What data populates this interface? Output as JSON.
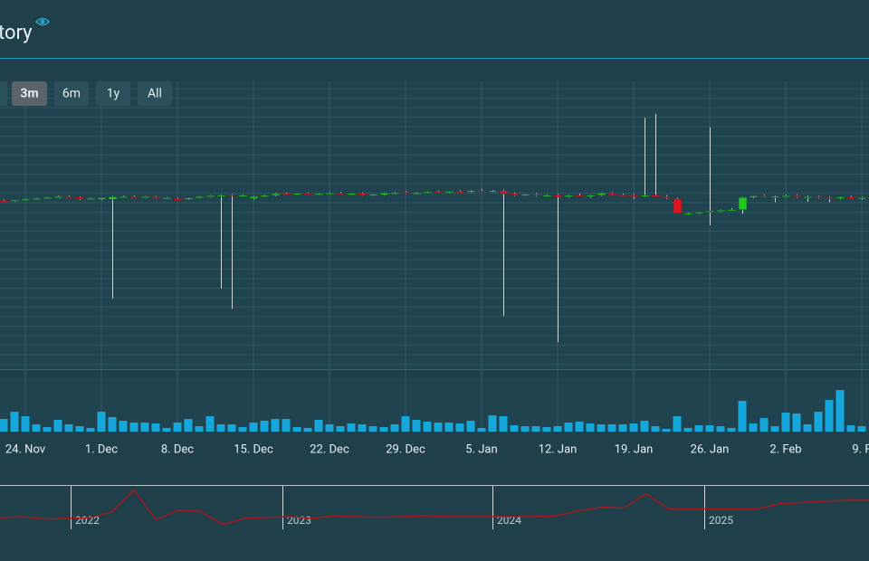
{
  "header": {
    "title": "tory"
  },
  "range_buttons": {
    "labels": [
      "3m",
      "6m",
      "1y",
      "All"
    ],
    "selected": 0
  },
  "chart_data": {
    "type": "candlestick",
    "categories": [
      null,
      null,
      "24. Nov",
      null,
      null,
      null,
      null,
      null,
      null,
      "1. Dec",
      null,
      null,
      null,
      null,
      null,
      null,
      "8. Dec",
      null,
      null,
      null,
      null,
      null,
      null,
      "15. Dec",
      null,
      null,
      null,
      null,
      null,
      null,
      "22. Dec",
      null,
      null,
      null,
      null,
      null,
      null,
      "29. Dec",
      null,
      null,
      null,
      null,
      null,
      null,
      "5. Jan",
      null,
      null,
      null,
      null,
      null,
      null,
      "12. Jan",
      null,
      null,
      null,
      null,
      null,
      null,
      "19. Jan",
      null,
      null,
      null,
      null,
      null,
      null,
      "26. Jan",
      null,
      null,
      null,
      null,
      null,
      null,
      "2. Feb",
      null,
      null,
      null,
      null,
      null,
      null,
      "9. F"
    ],
    "ohlc": [
      [
        58.6,
        59.0,
        58.2,
        58.3
      ],
      [
        58.4,
        58.9,
        58.1,
        58.8
      ],
      [
        58.8,
        59.3,
        58.5,
        59.1
      ],
      [
        59.1,
        59.6,
        58.8,
        59.4
      ],
      [
        59.4,
        59.9,
        59.1,
        59.7
      ],
      [
        59.7,
        60.3,
        59.4,
        60.0
      ],
      [
        60.0,
        60.4,
        59.7,
        59.8
      ],
      [
        59.8,
        60.1,
        58.9,
        59.2
      ],
      [
        59.2,
        59.6,
        58.8,
        59.4
      ],
      [
        59.0,
        59.8,
        58.7,
        59.6
      ],
      [
        59.0,
        60.2,
        24.5,
        59.9
      ],
      [
        59.9,
        60.3,
        59.5,
        60.0
      ],
      [
        60.0,
        60.4,
        59.6,
        59.8
      ],
      [
        59.8,
        60.2,
        59.5,
        60.0
      ],
      [
        60.1,
        60.4,
        59.3,
        59.5
      ],
      [
        59.5,
        59.9,
        59.2,
        59.6
      ],
      [
        59.2,
        59.6,
        58.8,
        59.0
      ],
      [
        59.0,
        59.7,
        58.8,
        59.5
      ],
      [
        59.5,
        60.2,
        59.3,
        60.0
      ],
      [
        60.0,
        60.5,
        59.7,
        60.3
      ],
      [
        60.3,
        60.8,
        28.0,
        60.5
      ],
      [
        60.7,
        61.0,
        21.0,
        60.4
      ],
      [
        60.4,
        60.8,
        60.0,
        60.5
      ],
      [
        59.3,
        60.2,
        58.9,
        60.0
      ],
      [
        60.0,
        60.6,
        59.7,
        60.4
      ],
      [
        60.4,
        61.3,
        60.1,
        61.0
      ],
      [
        61.0,
        61.4,
        60.6,
        60.8
      ],
      [
        60.8,
        61.3,
        60.5,
        61.1
      ],
      [
        61.2,
        61.5,
        60.6,
        60.7
      ],
      [
        60.7,
        61.2,
        60.4,
        61.0
      ],
      [
        61.0,
        61.5,
        60.8,
        61.2
      ],
      [
        61.2,
        61.6,
        60.8,
        60.9
      ],
      [
        60.9,
        61.3,
        60.6,
        61.1
      ],
      [
        61.1,
        61.5,
        60.3,
        60.5
      ],
      [
        60.5,
        61.0,
        60.2,
        60.8
      ],
      [
        60.6,
        61.4,
        60.3,
        61.2
      ],
      [
        61.2,
        61.6,
        60.9,
        61.3
      ],
      [
        61.5,
        61.9,
        60.8,
        61.0
      ],
      [
        61.0,
        61.5,
        60.7,
        61.3
      ],
      [
        61.3,
        61.8,
        61.0,
        61.6
      ],
      [
        61.6,
        62.0,
        61.2,
        61.5
      ],
      [
        61.5,
        61.9,
        61.1,
        61.8
      ],
      [
        61.8,
        62.2,
        61.4,
        61.6
      ],
      [
        61.6,
        62.3,
        61.3,
        62.0
      ],
      [
        62.0,
        62.6,
        61.6,
        61.8
      ],
      [
        61.8,
        62.3,
        61.4,
        62.0
      ],
      [
        62.0,
        62.4,
        18.5,
        61.0
      ],
      [
        61.0,
        61.4,
        60.2,
        60.6
      ],
      [
        60.6,
        61.0,
        60.2,
        60.8
      ],
      [
        60.8,
        61.2,
        60.0,
        60.3
      ],
      [
        60.3,
        60.8,
        59.9,
        60.5
      ],
      [
        60.5,
        60.9,
        9.4,
        59.9
      ],
      [
        59.9,
        60.6,
        59.6,
        60.4
      ],
      [
        60.4,
        61.0,
        60.0,
        60.2
      ],
      [
        60.2,
        60.7,
        59.6,
        60.5
      ],
      [
        60.5,
        61.4,
        60.2,
        61.2
      ],
      [
        61.2,
        61.5,
        60.4,
        60.6
      ],
      [
        60.6,
        61.0,
        60.2,
        60.4
      ],
      [
        60.4,
        60.8,
        59.2,
        60.2
      ],
      [
        60.2,
        87.4,
        59.8,
        60.5
      ],
      [
        60.5,
        88.7,
        59.9,
        60.0
      ],
      [
        60.0,
        60.5,
        59.2,
        59.8
      ],
      [
        59.1,
        59.5,
        54.0,
        54.1
      ],
      [
        54.1,
        54.5,
        53.8,
        54.2
      ],
      [
        54.2,
        54.7,
        53.9,
        54.6
      ],
      [
        54.6,
        84.0,
        50.0,
        55.0
      ],
      [
        55.0,
        55.5,
        54.6,
        55.3
      ],
      [
        55.3,
        56.0,
        55.0,
        55.5
      ],
      [
        55.4,
        59.9,
        54.0,
        59.7
      ],
      [
        59.7,
        60.4,
        59.4,
        60.2
      ],
      [
        60.2,
        60.6,
        59.6,
        59.9
      ],
      [
        59.9,
        60.4,
        58.0,
        60.1
      ],
      [
        60.1,
        60.6,
        59.7,
        60.3
      ],
      [
        60.3,
        60.6,
        59.5,
        59.8
      ],
      [
        59.8,
        60.3,
        58.2,
        60.0
      ],
      [
        60.1,
        60.4,
        59.3,
        59.6
      ],
      [
        59.6,
        60.0,
        58.0,
        59.5
      ],
      [
        59.5,
        60.0,
        59.0,
        59.8
      ],
      [
        59.8,
        60.3,
        59.2,
        59.4
      ],
      [
        59.4,
        59.9,
        58.8,
        59.6
      ]
    ],
    "ylim": [
      0,
      100
    ],
    "up_color": "#22c41f",
    "down_color": "#e0141e",
    "volume": [
      14,
      22,
      17,
      8,
      5,
      13,
      8,
      6,
      4,
      22,
      16,
      12,
      10,
      10,
      9,
      4,
      10,
      14,
      6,
      17,
      8,
      8,
      5,
      10,
      12,
      14,
      14,
      5,
      4,
      13,
      8,
      6,
      9,
      8,
      6,
      5,
      8,
      17,
      13,
      11,
      10,
      10,
      9,
      12,
      4,
      18,
      17,
      7,
      6,
      6,
      5,
      6,
      10,
      11,
      9,
      8,
      8,
      8,
      9,
      12,
      6,
      3,
      17,
      4,
      7,
      7,
      6,
      4,
      34,
      9,
      15,
      6,
      21,
      20,
      8,
      22,
      35,
      46,
      7,
      6
    ],
    "volume_ylim": [
      0,
      50
    ],
    "volume_color": "#15a8dc",
    "navigator": {
      "values": [
        27,
        30,
        24,
        26,
        27,
        40,
        92,
        22,
        45,
        42,
        12,
        26,
        28,
        30,
        26,
        32,
        30,
        28,
        30,
        32,
        30,
        30,
        30,
        30,
        30,
        32,
        44,
        52,
        50,
        84,
        48,
        48,
        48,
        48,
        48,
        60,
        63,
        66,
        68,
        68
      ],
      "ylim": [
        0,
        100
      ],
      "color": "#a51a1a",
      "labels": [
        "2022",
        "2023",
        "2024",
        "2025"
      ]
    }
  }
}
